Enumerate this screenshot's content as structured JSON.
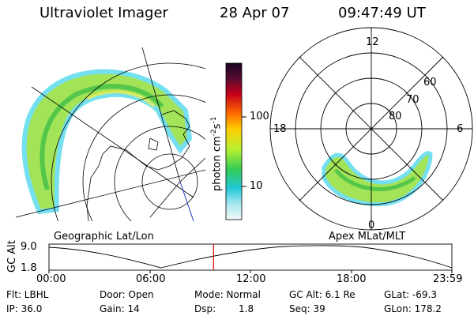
{
  "header": {
    "title": "Ultraviolet Imager",
    "date": "28 Apr 07",
    "time": "09:47:49 UT"
  },
  "colorbar": {
    "label": "photon cm",
    "label_sup1": "-2",
    "label_mid": "s",
    "label_sup2": "-1",
    "ticks": [
      "100",
      "10"
    ]
  },
  "polar_plot": {
    "clock_labels": {
      "top": "12",
      "right": "6",
      "bottom": "0",
      "left": "18"
    },
    "lat_labels": [
      "80",
      "70",
      "60"
    ]
  },
  "labels": {
    "geographic": "Geographic Lat/Lon",
    "apex": "Apex MLat/MLT",
    "gc_alt": "GC Alt"
  },
  "altitude_plot": {
    "y_ticks": [
      "9.0",
      "1.8"
    ],
    "x_ticks": [
      "00:00",
      "06:00",
      "12:00",
      "18:00",
      "23:59"
    ],
    "current_time_hours": 9.8
  },
  "info": {
    "flt": "Flt: LBHL",
    "ip": "IP: 36.0",
    "door": "Door: Open",
    "gain": "Gain: 14",
    "mode": "Mode: Normal",
    "dsp_label": "Dsp:",
    "dsp_value": "1.8",
    "gcalt": "GC Alt: 6.1 Re",
    "seq": "Seq: 39",
    "glat": "GLat: -69.3",
    "glon": "GLon: 178.2"
  },
  "colors": {
    "marker": "#e00000",
    "bar_top": "#2a0a3a",
    "aurora_low": "#33ccff",
    "aurora_mid": "#99ee33",
    "aurora_high": "#22bb44"
  }
}
